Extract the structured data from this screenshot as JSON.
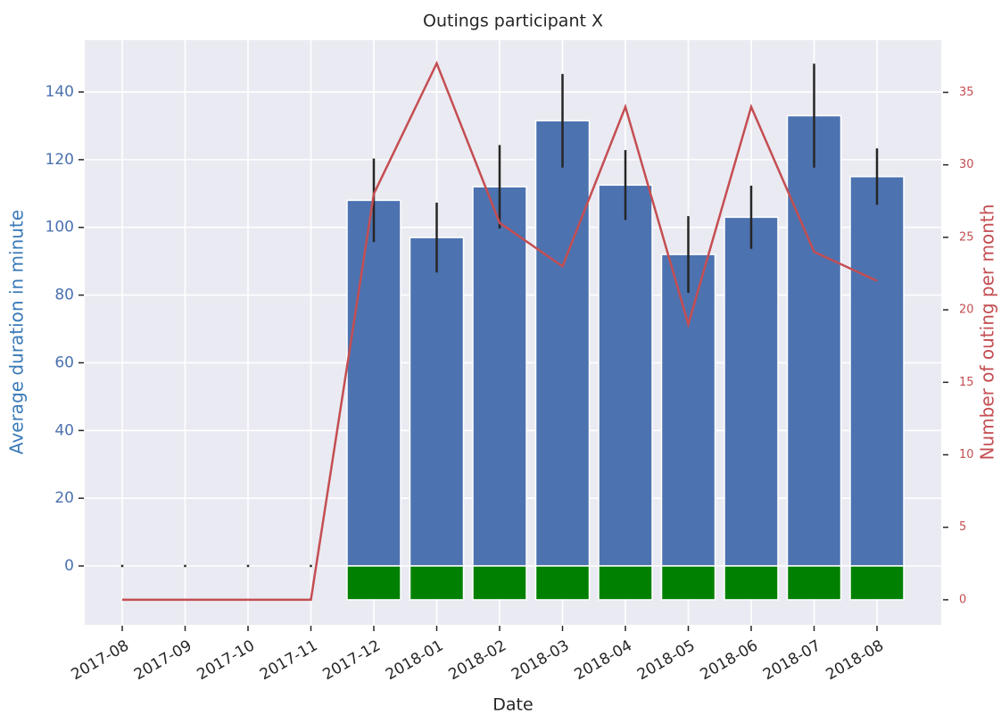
{
  "chart_data": {
    "type": "bar",
    "title": "Outings participant X",
    "xlabel": "Date",
    "ylabel": "Average duration in minute",
    "y2label": "Number of outing per month",
    "categories": [
      "2017-08",
      "2017-09",
      "2017-10",
      "2017-11",
      "2017-12",
      "2018-01",
      "2018-02",
      "2018-03",
      "2018-04",
      "2018-05",
      "2018-06",
      "2018-07",
      "2018-08"
    ],
    "series": [
      {
        "type": "bar",
        "color": "#4c72b0",
        "values": [
          0,
          0,
          0,
          0,
          108,
          97,
          112,
          131.5,
          112.5,
          92,
          103,
          133,
          115
        ],
        "errors": [
          0,
          0,
          0,
          0,
          12,
          10,
          12,
          13.5,
          10,
          11,
          9,
          15,
          8
        ]
      },
      {
        "type": "bar",
        "color": "#008000",
        "values": [
          null,
          null,
          null,
          null,
          -10,
          -10,
          -10,
          -10,
          -10,
          -10,
          -10,
          -10,
          -10
        ]
      },
      {
        "type": "line",
        "color": "#c44e52",
        "axis": "y2",
        "values": [
          0,
          0,
          0,
          0,
          28,
          37,
          26,
          23,
          34,
          19,
          34,
          24,
          22
        ]
      }
    ],
    "ylim": [
      -17.4,
      155.3
    ],
    "yticks": [
      0,
      20,
      40,
      60,
      80,
      100,
      120,
      140
    ],
    "y2lim": [
      -1.73,
      38.6
    ],
    "y2ticks": [
      0,
      5,
      10,
      15,
      20,
      25,
      30,
      35
    ],
    "grid": true
  }
}
